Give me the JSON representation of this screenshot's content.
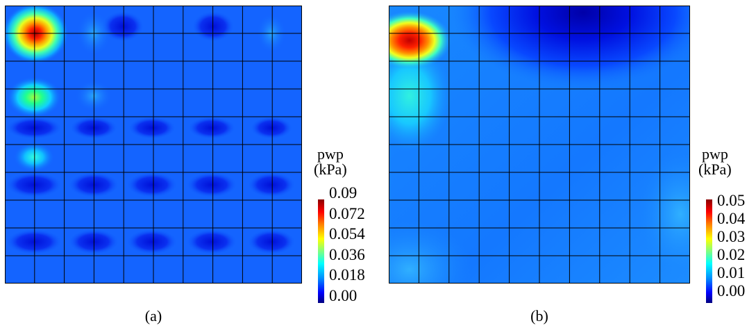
{
  "panels": [
    {
      "id": "a",
      "caption": "(a)",
      "legend_title_line1": "pwp",
      "legend_title_line2": "(kPa)",
      "ticks": [
        "0.09",
        "0.072",
        "0.054",
        "0.036",
        "0.018",
        "0.00"
      ]
    },
    {
      "id": "b",
      "caption": "(b)",
      "legend_title_line1": "pwp",
      "legend_title_line2": "(kPa)",
      "ticks": [
        "0.05",
        "0.04",
        "0.03",
        "0.02",
        "0.01",
        "0.00"
      ]
    }
  ],
  "colormap": [
    "#00007f",
    "#0000ff",
    "#0080ff",
    "#00ffff",
    "#80ff80",
    "#ffff00",
    "#ff8000",
    "#ff0000",
    "#7f0000"
  ],
  "grid_cells": 10
}
